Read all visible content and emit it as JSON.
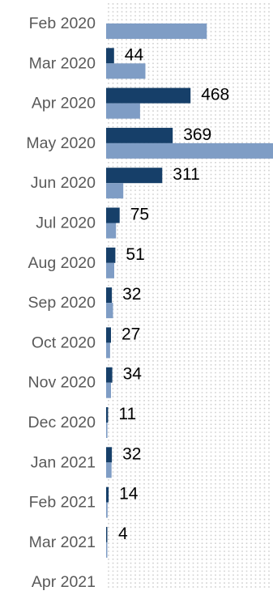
{
  "chart_data": {
    "type": "bar",
    "orientation": "horizontal",
    "categories": [
      "Feb 2020",
      "Mar 2020",
      "Apr 2020",
      "May 2020",
      "Jun 2020",
      "Jul 2020",
      "Aug 2020",
      "Sep 2020",
      "Oct 2020",
      "Nov 2020",
      "Dec 2020",
      "Jan 2021",
      "Feb 2021",
      "Mar 2021",
      "Apr 2021"
    ],
    "series": [
      {
        "values": [
          0,
          44,
          468,
          369,
          311,
          75,
          51,
          32,
          27,
          34,
          11,
          32,
          14,
          4,
          0
        ],
        "color": "#163f69",
        "labeled": true
      },
      {
        "values": [
          558,
          218,
          188,
          925,
          95,
          55,
          45,
          38,
          22,
          27,
          7,
          30,
          8,
          4,
          0
        ],
        "color": "#7f9dc5",
        "labeled": false
      }
    ],
    "data_labels": [
      "",
      "44",
      "468",
      "369",
      "311",
      "75",
      "51",
      "32",
      "27",
      "34",
      "11",
      "32",
      "14",
      "4",
      ""
    ],
    "title": "",
    "xlabel": "",
    "ylabel": "",
    "xlim": [
      0,
      925
    ],
    "grid": true,
    "legend": "none"
  }
}
